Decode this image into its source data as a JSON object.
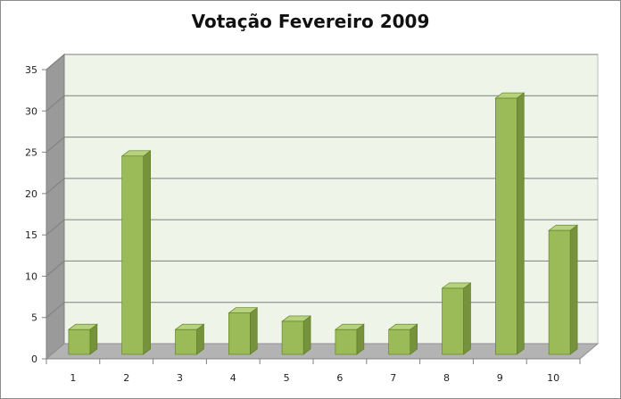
{
  "chart_data": {
    "type": "bar",
    "title": "Votação Fevereiro 2009",
    "xlabel": "",
    "ylabel": "",
    "categories": [
      "1",
      "2",
      "3",
      "4",
      "5",
      "6",
      "7",
      "8",
      "9",
      "10"
    ],
    "values": [
      3,
      24,
      3,
      5,
      4,
      3,
      3,
      8,
      31,
      15
    ],
    "ylim": [
      0,
      35
    ],
    "yticks": [
      "0",
      "5",
      "10",
      "15",
      "20",
      "25",
      "30",
      "35"
    ],
    "grid": true,
    "legend": "none",
    "style": "3d-column"
  },
  "colors": {
    "bar_front": "#9bbb59",
    "bar_side": "#76923c",
    "bar_top": "#b7d27c",
    "bar_edge": "#5a7a1e",
    "plot_back": "#eef4e8",
    "side_wall": "#9a9a9a",
    "floor": "#b3b3b3",
    "gridline": "#7f7f7f"
  }
}
